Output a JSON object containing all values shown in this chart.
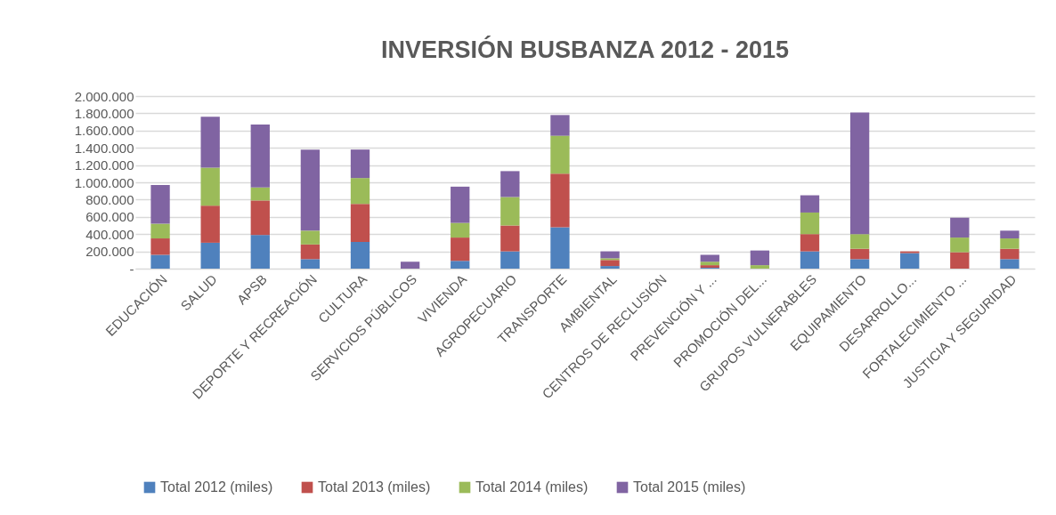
{
  "chart_data": {
    "type": "bar",
    "title": "INVERSIÓN BUSBANZA 2012  - 2015",
    "stacked": true,
    "legend": "bottom",
    "grid": "y",
    "categories": [
      "EDUCACIÓN",
      "SALUD",
      "APSB",
      "DEPORTE Y RECREACIÓN",
      "CULTURA",
      "SERVICIOS PÚBLICOS",
      "VIVIENDA",
      "AGROPECUARIO",
      "TRANSPORTE",
      "AMBIENTAL",
      "CENTROS DE RECLUSIÓN",
      "PREVENCIÓN Y ...",
      "PROMOCIÓN DEL...",
      "GRUPOS VULNERABLES",
      "EQUIPAMIENTO",
      "DESARROLLO...",
      "FORTALECIMIENTO ...",
      "JUSTICIA Y SEGURIDAD"
    ],
    "ylim": [
      0,
      2000000
    ],
    "yticks": [
      {
        "value": 0,
        "label": "-"
      },
      {
        "value": 200000,
        "label": "200.000"
      },
      {
        "value": 400000,
        "label": "400.000"
      },
      {
        "value": 600000,
        "label": "600.000"
      },
      {
        "value": 800000,
        "label": "800.000"
      },
      {
        "value": 1000000,
        "label": "1.000.000"
      },
      {
        "value": 1200000,
        "label": "1.200.000"
      },
      {
        "value": 1400000,
        "label": "1.400.000"
      },
      {
        "value": 1600000,
        "label": "1.600.000"
      },
      {
        "value": 1800000,
        "label": "1.800.000"
      },
      {
        "value": 2000000,
        "label": "2.000.000"
      }
    ],
    "series": [
      {
        "name": "Total 2012 (miles)",
        "color": "#4f81bd",
        "values": [
          160000,
          300000,
          390000,
          110000,
          310000,
          null,
          90000,
          200000,
          480000,
          30000,
          null,
          10000,
          null,
          200000,
          110000,
          180000,
          null,
          110000
        ]
      },
      {
        "name": "Total 2013 (miles)",
        "color": "#c0504d",
        "values": [
          190000,
          430000,
          400000,
          170000,
          440000,
          null,
          270000,
          300000,
          620000,
          70000,
          null,
          30000,
          null,
          200000,
          120000,
          20000,
          190000,
          120000
        ]
      },
      {
        "name": "Total 2014 (miles)",
        "color": "#9bbb59",
        "values": [
          170000,
          440000,
          150000,
          160000,
          300000,
          null,
          170000,
          330000,
          440000,
          20000,
          null,
          40000,
          40000,
          250000,
          170000,
          null,
          170000,
          120000
        ]
      },
      {
        "name": "Total 2015 (miles)",
        "color": "#8064a2",
        "values": [
          450000,
          590000,
          730000,
          940000,
          330000,
          80000,
          420000,
          300000,
          240000,
          80000,
          null,
          80000,
          170000,
          200000,
          1410000,
          null,
          230000,
          90000
        ]
      }
    ]
  }
}
